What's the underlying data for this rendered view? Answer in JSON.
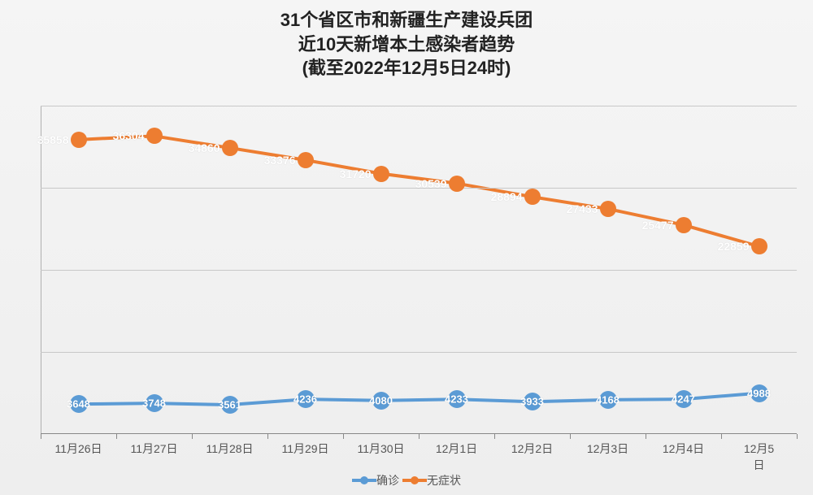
{
  "chart": {
    "type": "line",
    "title_lines": [
      "31个省区市和新疆生产建设兵团",
      "近10天新增本土感染者趋势",
      "(截至2022年12月5日24时)"
    ],
    "title_fontsize": 22,
    "title_color": "#222222",
    "background_gradient_top": "#f5f5f5",
    "background_gradient_bottom": "#eeeeee",
    "plot": {
      "x_categories": [
        "11月26日",
        "11月27日",
        "11月28日",
        "11月29日",
        "11月30日",
        "12月1日",
        "12月2日",
        "12月3日",
        "12月4日",
        "12月5日"
      ],
      "x_label_fontsize": 14,
      "x_label_color": "#555555",
      "ylim": [
        0,
        40000
      ],
      "grid_step": 10000,
      "grid_color": "#c8c8c8",
      "axis_color": "#888888",
      "series": [
        {
          "name": "确诊",
          "color": "#5b9bd5",
          "line_width": 4,
          "marker_radius": 11,
          "label_fontsize": 13,
          "label_color": "#ffffff",
          "label_position": "on-marker",
          "values": [
            3648,
            3748,
            3561,
            4236,
            4080,
            4233,
            3933,
            4168,
            4247,
            4988
          ]
        },
        {
          "name": "无症状",
          "color": "#ed7d31",
          "line_width": 4,
          "marker_radius": 10,
          "label_fontsize": 14,
          "label_color": "#ffffff",
          "label_position": "left-of-marker",
          "values": [
            35858,
            36304,
            34860,
            33376,
            31720,
            30539,
            28894,
            27433,
            25477,
            22859
          ]
        }
      ]
    },
    "legend": {
      "fontsize": 14,
      "color": "#555555",
      "line_width": 4,
      "dot_radius": 5
    }
  }
}
